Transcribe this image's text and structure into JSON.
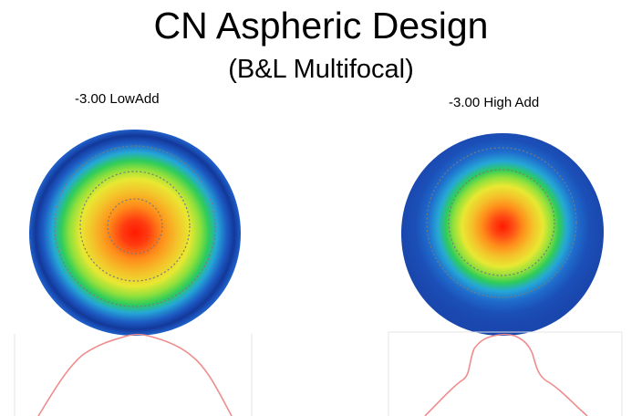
{
  "slide": {
    "title": "CN Aspheric Design",
    "subtitle": "(B&L Multifocal)"
  },
  "lenses": [
    {
      "label": "-3.00 LowAdd"
    },
    {
      "label": "-3.00 High Add"
    }
  ],
  "colors": {
    "center": "#ff1a00",
    "orange": "#ff8c1a",
    "yellow": "#e8e832",
    "green": "#2ecc5a",
    "cyan": "#25a8d6",
    "blue": "#1d5bc4",
    "edge_blue": "#13389a",
    "profile_line": "#f08c8c",
    "ring_line": "#7a7a7a"
  }
}
